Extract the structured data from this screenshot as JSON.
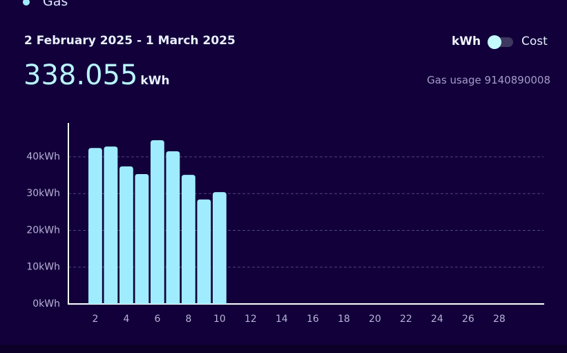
{
  "legend": "Gas",
  "date_range": "2 February 2025 - 1 March 2025",
  "total": {
    "value": "338.055",
    "unit": "kWh"
  },
  "toggle": {
    "left": "kWh",
    "right": "Cost"
  },
  "meter": "Gas usage 9140890008",
  "chart_data": {
    "type": "bar",
    "color": "#a0ecff",
    "x": [
      2,
      3,
      4,
      5,
      6,
      7,
      8,
      9,
      10
    ],
    "values": [
      42.4,
      42.8,
      37.4,
      35.3,
      44.5,
      41.5,
      35.1,
      28.4,
      30.4
    ],
    "xlim": [
      0.27,
      30.85
    ],
    "xticks": [
      2,
      4,
      6,
      8,
      10,
      12,
      14,
      16,
      18,
      20,
      22,
      24,
      26,
      28
    ],
    "ylim": [
      0,
      49.2
    ],
    "yticks": [
      {
        "value": 0,
        "label": "0kWh"
      },
      {
        "value": 10,
        "label": "10kWh"
      },
      {
        "value": 20,
        "label": "20kWh"
      },
      {
        "value": 30,
        "label": "30kWh"
      },
      {
        "value": 40,
        "label": "40kWh"
      }
    ],
    "grid": true
  }
}
